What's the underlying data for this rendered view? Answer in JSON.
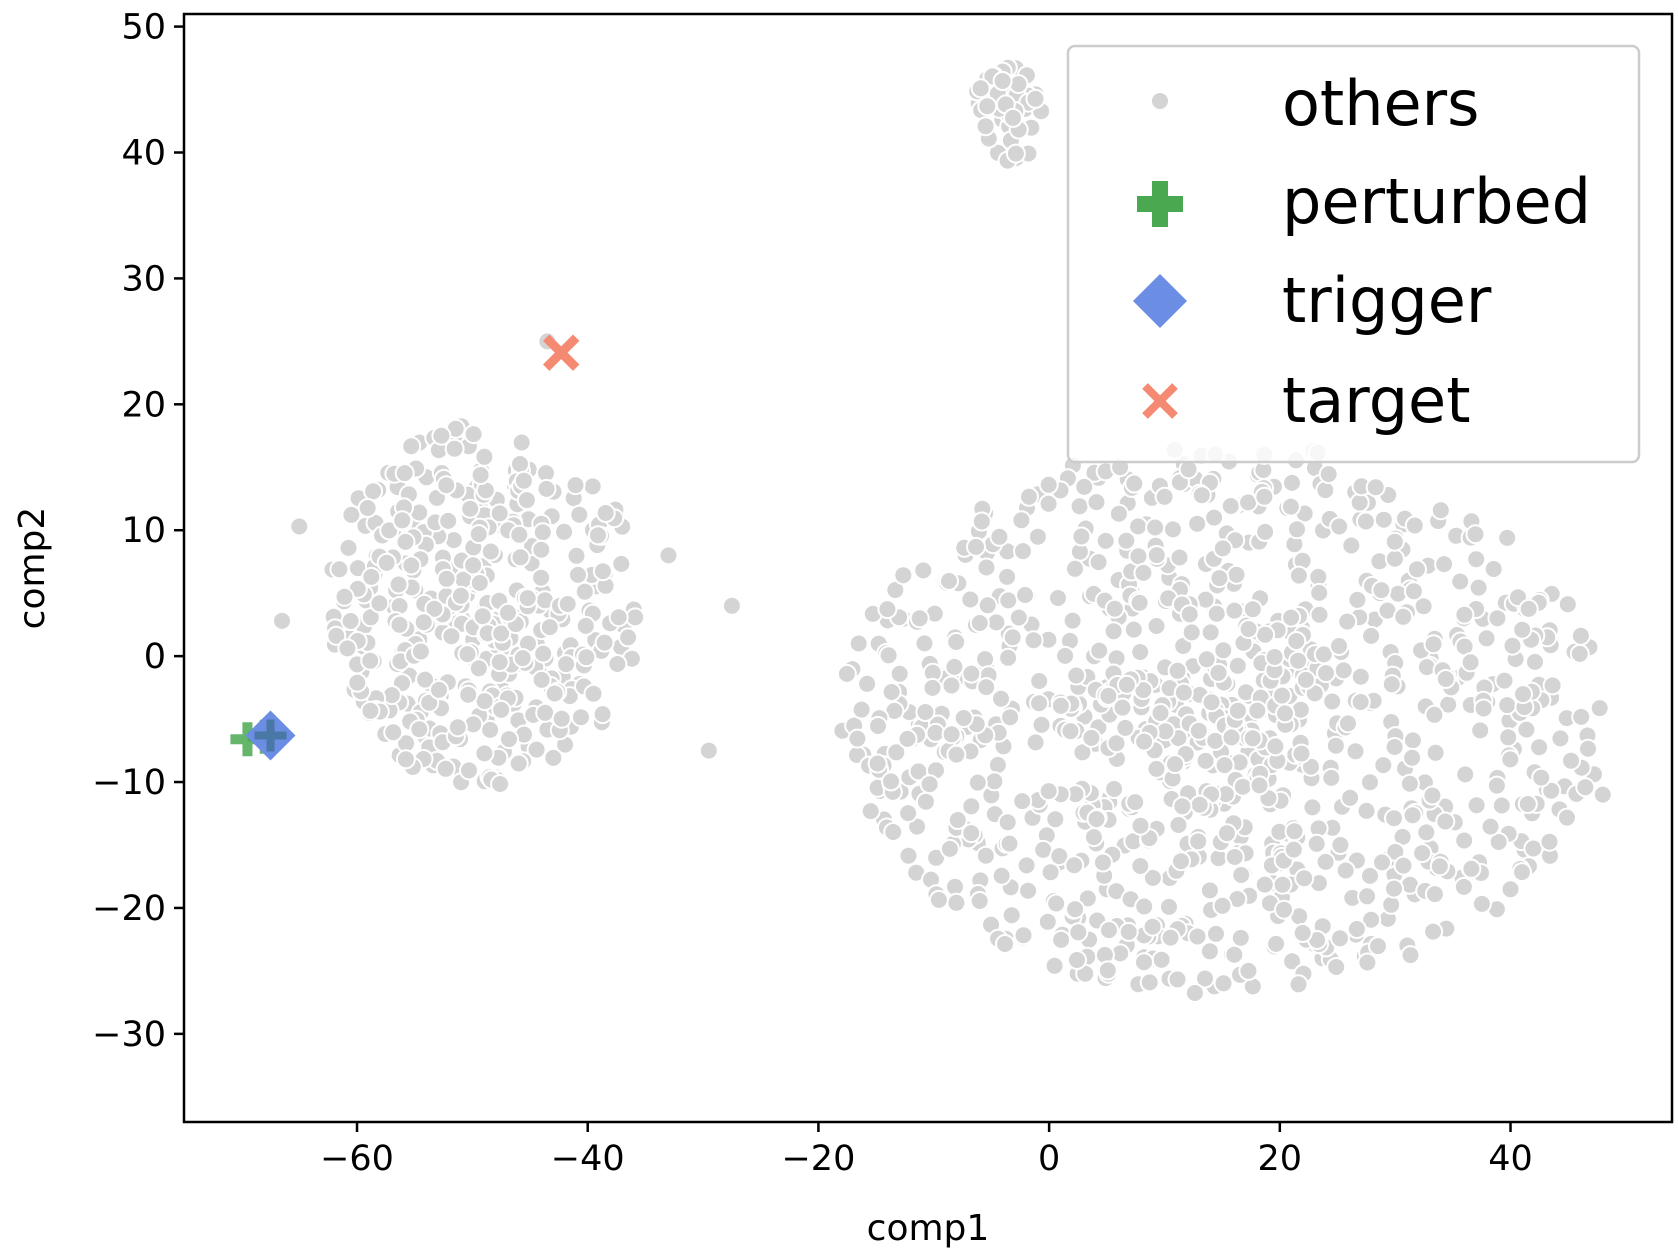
{
  "chart_data": {
    "type": "scatter",
    "title": "",
    "xlabel": "comp1",
    "ylabel": "comp2",
    "xlim": [
      -75,
      54
    ],
    "ylim": [
      -37,
      51
    ],
    "xticks": [
      -60,
      -40,
      -20,
      0,
      20,
      40
    ],
    "yticks": [
      -30,
      -20,
      -10,
      0,
      10,
      20,
      30,
      40,
      50
    ],
    "xtick_labels": [
      "−60",
      "−40",
      "−20",
      "0",
      "20",
      "40"
    ],
    "ytick_labels": [
      "−30",
      "−20",
      "−10",
      "0",
      "10",
      "20",
      "30",
      "40",
      "50"
    ],
    "grid": false,
    "legend_position": "top-right",
    "series": [
      {
        "name": "others",
        "marker": "circle",
        "color": "#d4d4d4",
        "edge_color": "#ffffff",
        "clusters": [
          {
            "cx": -49,
            "cy": 4,
            "rx": 13.5,
            "ry": 14.5,
            "n": 430,
            "seed": 11
          },
          {
            "cx": 15,
            "cy": -5,
            "rx": 33,
            "ry": 22,
            "n": 1050,
            "seed": 23
          },
          {
            "cx": -3.5,
            "cy": 43,
            "rx": 3.2,
            "ry": 3.8,
            "n": 55,
            "seed": 37
          }
        ],
        "extra_points": [
          [
            -27.5,
            4
          ],
          [
            -29.5,
            -7.5
          ],
          [
            -43.5,
            25
          ],
          [
            -33,
            8
          ],
          [
            -65,
            10.3
          ],
          [
            -66.5,
            2.8
          ],
          [
            48,
            -11
          ]
        ]
      },
      {
        "name": "perturbed",
        "marker": "plus",
        "color": "#4aa851",
        "points": [
          [
            -68,
            -6.4
          ],
          [
            -69.5,
            -6.6
          ]
        ]
      },
      {
        "name": "trigger",
        "marker": "diamond",
        "color": "#6b8de3",
        "points": [
          [
            -67.5,
            -6.3
          ]
        ]
      },
      {
        "name": "target",
        "marker": "x",
        "color": "#f58a73",
        "points": [
          [
            -42.3,
            24.1
          ]
        ]
      }
    ],
    "legend": [
      "others",
      "perturbed",
      "trigger",
      "target"
    ]
  }
}
